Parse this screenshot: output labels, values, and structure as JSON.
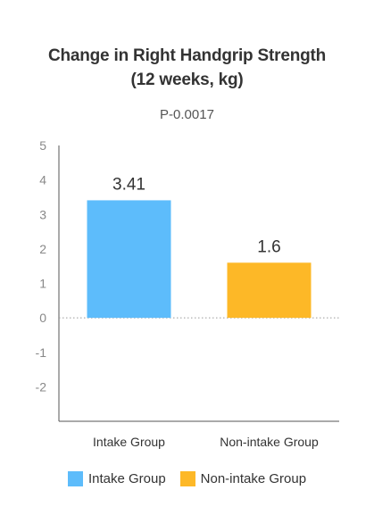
{
  "chart_data": {
    "type": "bar",
    "title_line1": "Change in Right Handgrip Strength",
    "title_line2": "(12 weeks, kg)",
    "annotation": "P-0.0017",
    "categories": [
      "Intake Group",
      "Non-intake Group"
    ],
    "values": [
      3.41,
      1.6
    ],
    "data_labels": [
      "3.41",
      "1.6"
    ],
    "colors": [
      "#5dbcfb",
      "#fdb827"
    ],
    "ylim": [
      -3,
      5
    ],
    "yticks": [
      "5",
      "4",
      "3",
      "2",
      "1",
      "0",
      "-1",
      "-2"
    ],
    "ytick_values": [
      5,
      4,
      3,
      2,
      1,
      0,
      -1,
      -2
    ],
    "xlabel": "",
    "ylabel": "",
    "grid": false,
    "zero_line": "dotted",
    "legend": {
      "position": "bottom",
      "entries": [
        "Intake Group",
        "Non-intake Group"
      ]
    }
  }
}
